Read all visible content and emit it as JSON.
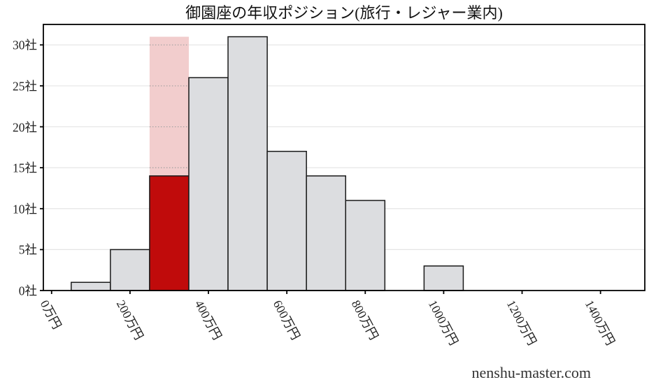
{
  "title": "御園座の年収ポジション(旅行・レジャー業内)",
  "watermark": "nenshu-master.com",
  "chart_data": {
    "type": "bar",
    "subtype": "histogram",
    "title": "御園座の年収ポジション(旅行・レジャー業内)",
    "xlabel": "",
    "ylabel": "",
    "x_unit": "万円",
    "y_unit": "社",
    "bin_width": 100,
    "bin_centers": [
      100,
      200,
      300,
      400,
      500,
      600,
      700,
      800,
      900,
      1000,
      1100,
      1200,
      1300,
      1400
    ],
    "values": [
      1,
      5,
      14,
      26,
      31,
      17,
      14,
      11,
      0,
      3,
      0,
      0,
      0,
      0
    ],
    "highlight": {
      "bin_center": 300,
      "value": 14,
      "band_top": 31
    },
    "x_ticks": [
      {
        "value": 0,
        "label": "0万円"
      },
      {
        "value": 200,
        "label": "200万円"
      },
      {
        "value": 400,
        "label": "400万円"
      },
      {
        "value": 600,
        "label": "600万円"
      },
      {
        "value": 800,
        "label": "800万円"
      },
      {
        "value": 1000,
        "label": "1000万円"
      },
      {
        "value": 1200,
        "label": "1200万円"
      },
      {
        "value": 1400,
        "label": "1400万円"
      }
    ],
    "y_ticks": [
      {
        "value": 0,
        "label": "0社"
      },
      {
        "value": 5,
        "label": "5社"
      },
      {
        "value": 10,
        "label": "10社"
      },
      {
        "value": 15,
        "label": "15社"
      },
      {
        "value": 20,
        "label": "20社"
      },
      {
        "value": 25,
        "label": "25社"
      },
      {
        "value": 30,
        "label": "30社"
      }
    ],
    "xlim": [
      -21,
      1513
    ],
    "ylim": [
      0,
      32.5
    ],
    "grid": "horizontal",
    "legend": "none",
    "colors": {
      "bar_fill": "#dcdde0",
      "bar_edge": "#1a1a1a",
      "highlight_fill": "#c00b0b",
      "highlight_band": "#f2cdcd",
      "band_dotted_line": "#a0a0a0",
      "gridline": "#e5e5e5",
      "axis": "#000000",
      "tick_text": "#222222",
      "title_text": "#111111",
      "watermark_text": "#333333",
      "background": "#ffffff"
    }
  }
}
